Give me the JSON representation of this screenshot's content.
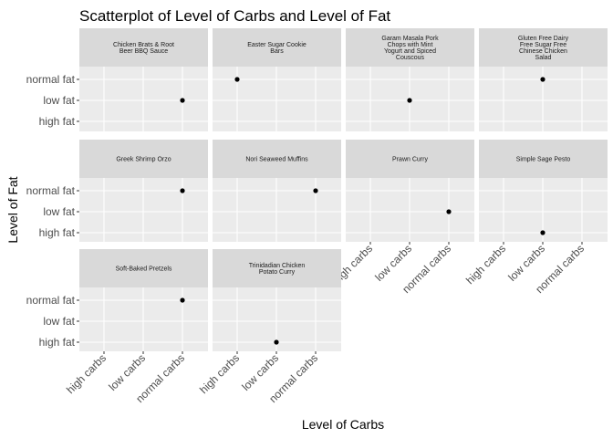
{
  "chart_data": {
    "type": "scatter",
    "title": "Scatterplot of Level of Carbs and Level of Fat",
    "xlabel": "Level of Carbs",
    "ylabel": "Level of Fat",
    "x_categories": [
      "high carbs",
      "low carbs",
      "normal carbs"
    ],
    "y_categories": [
      "normal fat",
      "low fat",
      "high fat"
    ],
    "grid": true,
    "facets": [
      {
        "label_lines": [
          "Chicken Brats & Root",
          "Beer BBQ Sauce"
        ],
        "points": [
          {
            "x": "normal carbs",
            "y": "low fat"
          }
        ]
      },
      {
        "label_lines": [
          "Easter Sugar Cookie",
          "Bars"
        ],
        "points": [
          {
            "x": "high carbs",
            "y": "normal fat"
          }
        ]
      },
      {
        "label_lines": [
          "Garam Masala Pork",
          "Chops with Mint",
          "Yogurt and Spiced",
          "Couscous"
        ],
        "points": [
          {
            "x": "low carbs",
            "y": "low fat"
          }
        ]
      },
      {
        "label_lines": [
          "Gluten Free Dairy",
          "Free Sugar Free",
          "Chinese Chicken",
          "Salad"
        ],
        "points": [
          {
            "x": "low carbs",
            "y": "normal fat"
          }
        ]
      },
      {
        "label_lines": [
          "Greek Shrimp Orzo"
        ],
        "points": [
          {
            "x": "normal carbs",
            "y": "normal fat"
          }
        ]
      },
      {
        "label_lines": [
          "Nori Seaweed Muffins"
        ],
        "points": [
          {
            "x": "normal carbs",
            "y": "normal fat"
          }
        ]
      },
      {
        "label_lines": [
          "Prawn Curry"
        ],
        "points": [
          {
            "x": "normal carbs",
            "y": "low fat"
          }
        ]
      },
      {
        "label_lines": [
          "Simple Sage Pesto"
        ],
        "points": [
          {
            "x": "low carbs",
            "y": "high fat"
          }
        ]
      },
      {
        "label_lines": [
          "Soft-Baked Pretzels"
        ],
        "points": [
          {
            "x": "normal carbs",
            "y": "normal fat"
          }
        ]
      },
      {
        "label_lines": [
          "Trinidadian Chicken",
          "Potato Curry"
        ],
        "points": [
          {
            "x": "low carbs",
            "y": "high fat"
          }
        ]
      }
    ]
  }
}
